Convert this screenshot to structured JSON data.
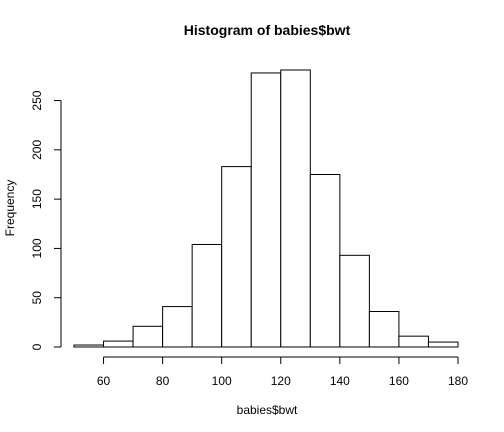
{
  "chart_data": {
    "type": "bar",
    "title": "Histogram of babies$bwt",
    "xlabel": "babies$bwt",
    "ylabel": "Frequency",
    "bin_edges": [
      50,
      60,
      70,
      80,
      90,
      100,
      110,
      120,
      130,
      140,
      150,
      160,
      170,
      180
    ],
    "values": [
      2,
      6,
      21,
      41,
      104,
      183,
      278,
      281,
      175,
      93,
      36,
      11,
      5
    ],
    "xlim": [
      50,
      180
    ],
    "ylim": [
      0,
      281
    ],
    "x_ticks": [
      60,
      80,
      100,
      120,
      140,
      160,
      180
    ],
    "y_ticks": [
      0,
      50,
      100,
      150,
      200,
      250
    ],
    "grid": false,
    "legend": "none",
    "colors": {
      "bar_fill": "#ffffff",
      "bar_stroke": "#000000"
    }
  }
}
